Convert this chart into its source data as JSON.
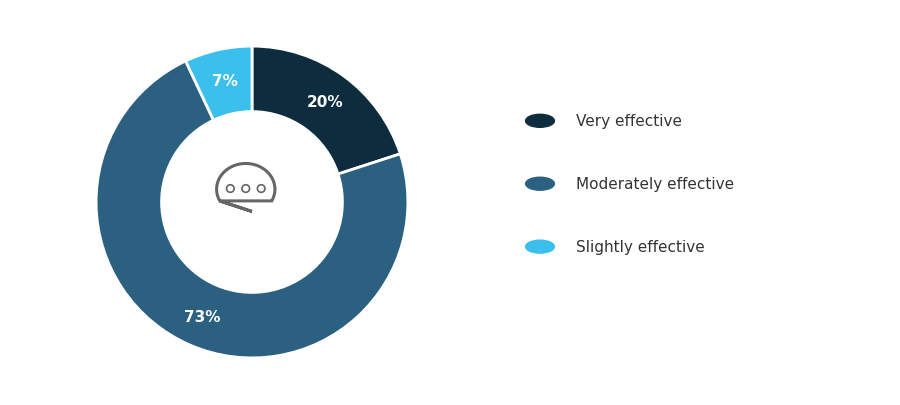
{
  "values": [
    20,
    73,
    7
  ],
  "colors": [
    "#0d2d3e",
    "#2b6080",
    "#3bbfed"
  ],
  "pct_labels": [
    "20%",
    "73%",
    "7%"
  ],
  "legend_labels": [
    "Very effective",
    "Moderately effective",
    "Slightly effective"
  ],
  "background_color": "#ffffff",
  "text_color": "#333333",
  "startangle": 90,
  "label_fontsize": 11,
  "legend_fontsize": 11,
  "bubble_color": "#666666",
  "pct_text_colors": [
    "white",
    "white",
    "white"
  ]
}
